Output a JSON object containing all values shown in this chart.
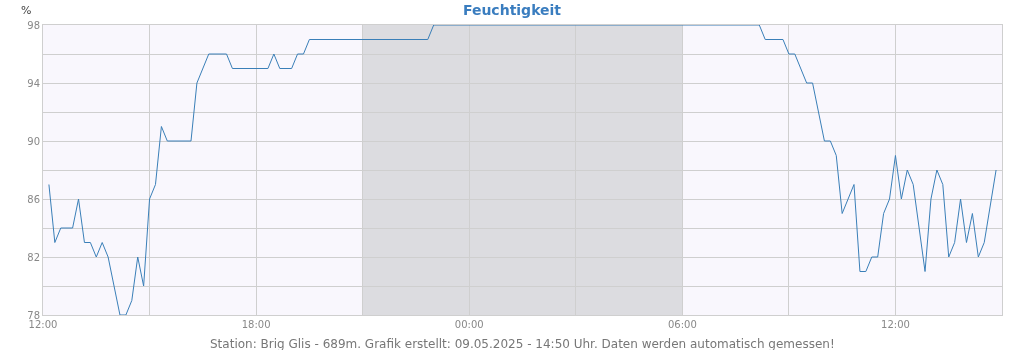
{
  "chart_data": {
    "type": "line",
    "title": "Feuchtigkeit",
    "ylabel": "%",
    "annotations": [
      "Station: Brig Glis - 689m. Grafik erstellt: 09.05.2025 - 14:50 Uhr. Daten werden automatisch gemessen!"
    ],
    "x": [
      "2025-05-08T12:10",
      "2025-05-08T12:20",
      "2025-05-08T12:30",
      "2025-05-08T12:50",
      "2025-05-08T13:00",
      "2025-05-08T13:10",
      "2025-05-08T13:20",
      "2025-05-08T13:30",
      "2025-05-08T13:40",
      "2025-05-08T13:50",
      "2025-05-08T14:10",
      "2025-05-08T14:20",
      "2025-05-08T14:30",
      "2025-05-08T14:40",
      "2025-05-08T14:50",
      "2025-05-08T15:00",
      "2025-05-08T15:10",
      "2025-05-08T15:20",
      "2025-05-08T15:30",
      "2025-05-08T16:10",
      "2025-05-08T16:20",
      "2025-05-08T16:40",
      "2025-05-08T17:10",
      "2025-05-08T17:20",
      "2025-05-08T18:20",
      "2025-05-08T18:30",
      "2025-05-08T18:40",
      "2025-05-08T19:00",
      "2025-05-08T19:10",
      "2025-05-08T19:20",
      "2025-05-08T19:30",
      "2025-05-08T22:50",
      "2025-05-08T23:00",
      "2025-05-09T08:10",
      "2025-05-09T08:20",
      "2025-05-09T08:50",
      "2025-05-09T09:00",
      "2025-05-09T09:10",
      "2025-05-09T09:30",
      "2025-05-09T09:40",
      "2025-05-09T10:00",
      "2025-05-09T10:10",
      "2025-05-09T10:20",
      "2025-05-09T10:30",
      "2025-05-09T10:50",
      "2025-05-09T11:00",
      "2025-05-09T11:10",
      "2025-05-09T11:20",
      "2025-05-09T11:30",
      "2025-05-09T11:40",
      "2025-05-09T11:50",
      "2025-05-09T12:00",
      "2025-05-09T12:10",
      "2025-05-09T12:20",
      "2025-05-09T12:30",
      "2025-05-09T12:50",
      "2025-05-09T13:00",
      "2025-05-09T13:10",
      "2025-05-09T13:20",
      "2025-05-09T13:30",
      "2025-05-09T13:40",
      "2025-05-09T13:50",
      "2025-05-09T14:00",
      "2025-05-09T14:10",
      "2025-05-09T14:20",
      "2025-05-09T14:30",
      "2025-05-09T14:50"
    ],
    "series": [
      {
        "color": "#3a7fb8",
        "values": [
          87,
          83,
          84,
          84,
          86,
          83,
          83,
          82,
          83,
          82,
          78,
          78,
          79,
          82,
          80,
          86,
          87,
          91,
          90,
          90,
          94,
          96,
          96,
          95,
          95,
          96,
          95,
          95,
          96,
          96,
          97,
          97,
          98,
          98,
          97,
          97,
          96,
          96,
          94,
          94,
          90,
          90,
          89,
          85,
          87,
          81,
          81,
          82,
          82,
          85,
          86,
          89,
          86,
          88,
          87,
          81,
          86,
          88,
          87,
          82,
          83,
          86,
          83,
          85,
          82,
          83,
          88
        ]
      }
    ],
    "xlim": [
      "2025-05-08T12:00",
      "2025-05-09T15:00"
    ],
    "xticks": [
      {
        "value": "2025-05-08T12:00",
        "label": "12:00"
      },
      {
        "value": "2025-05-08T15:00",
        "label": null
      },
      {
        "value": "2025-05-08T18:00",
        "label": "18:00"
      },
      {
        "value": "2025-05-08T21:00",
        "label": null
      },
      {
        "value": "2025-05-09T00:00",
        "label": "00:00"
      },
      {
        "value": "2025-05-09T03:00",
        "label": null
      },
      {
        "value": "2025-05-09T06:00",
        "label": "06:00"
      },
      {
        "value": "2025-05-09T09:00",
        "label": null
      },
      {
        "value": "2025-05-09T12:00",
        "label": "12:00"
      }
    ],
    "ylim": [
      78,
      98
    ],
    "yticks": [
      78,
      {
        "value": 80,
        "label": null
      },
      82,
      {
        "value": 84,
        "label": null
      },
      86,
      {
        "value": 88,
        "label": null
      },
      90,
      {
        "value": 92,
        "label": null
      },
      94,
      {
        "value": 96,
        "label": null
      },
      98
    ],
    "bands": [
      {
        "axis": "x",
        "from": "2025-05-08T21:00",
        "to": "2025-05-09T06:00",
        "color": "#dcdce0"
      }
    ],
    "grid": true,
    "line_style": "solid"
  }
}
